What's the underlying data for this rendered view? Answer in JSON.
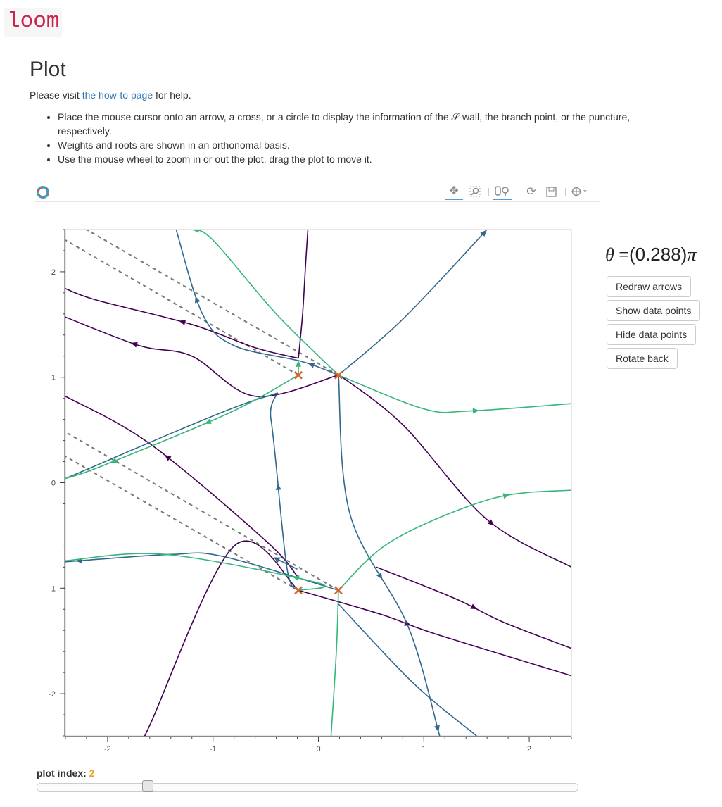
{
  "brand": "loom",
  "title": "Plot",
  "help": {
    "prefix": "Please visit ",
    "link": "the how-to page",
    "suffix": " for help."
  },
  "tips": [
    "Place the mouse cursor onto an arrow, a cross, or a circle to display the information of the 𝒮-wall, the branch point, or the puncture, respectively.",
    "Weights and roots are shown in an orthonomal basis.",
    "Use the mouse wheel to zoom in or out the plot, drag the plot to move it."
  ],
  "toolbar": {
    "icons": [
      "pan-icon",
      "box-zoom-icon",
      "wheel-zoom-icon",
      "reset-icon",
      "save-icon",
      "hover-icon"
    ],
    "active": [
      "pan-icon",
      "wheel-zoom-icon"
    ]
  },
  "theta": {
    "symbol": "θ",
    "eq": " =",
    "value": "(0.288)",
    "pi": "π"
  },
  "buttons": {
    "redraw": "Redraw arrows",
    "show": "Show data points",
    "hide": "Hide data points",
    "rotate": "Rotate back"
  },
  "slider": {
    "label": "plot index: ",
    "value": "2",
    "min": 0,
    "max": 10,
    "current": 2
  },
  "colors": {
    "purple": "#440154",
    "blue": "#31688e",
    "green": "#35b779",
    "cross": "#d6662e",
    "dashed": "#777777",
    "accent": "#f0a020"
  },
  "chart_data": {
    "type": "line",
    "title": "",
    "xlim": [
      -2.4,
      2.4
    ],
    "ylim": [
      -2.4,
      2.4
    ],
    "xticks": [
      -2,
      -1,
      0,
      1,
      2
    ],
    "yticks": [
      -2,
      -1,
      0,
      1,
      2
    ],
    "xtick_labels": [
      "-2",
      "-1",
      "0",
      "1",
      "2"
    ],
    "ytick_labels": [
      "-2",
      "-1",
      "0",
      "1",
      "2"
    ],
    "grid": false,
    "branch_points": [
      {
        "x": -0.19,
        "y": 1.02
      },
      {
        "x": 0.19,
        "y": 1.02
      },
      {
        "x": -0.19,
        "y": -1.02
      },
      {
        "x": 0.19,
        "y": -1.02
      }
    ],
    "cuts": [
      {
        "points": [
          [
            -0.19,
            1.02
          ],
          [
            -2.4,
            2.3
          ]
        ]
      },
      {
        "points": [
          [
            0.19,
            1.02
          ],
          [
            -2.2,
            2.4
          ]
        ]
      },
      {
        "points": [
          [
            -0.19,
            -1.02
          ],
          [
            -2.4,
            0.25
          ]
        ]
      },
      {
        "points": [
          [
            0.19,
            -1.02
          ],
          [
            -2.4,
            0.48
          ]
        ]
      }
    ],
    "walls": [
      {
        "color": "purple",
        "points": [
          [
            -0.19,
            1.18
          ],
          [
            -0.6,
            1.28
          ],
          [
            -1.2,
            1.5
          ],
          [
            -2.1,
            1.73
          ],
          [
            -2.4,
            1.84
          ]
        ],
        "arrows": [
          0.5
        ]
      },
      {
        "color": "purple",
        "points": [
          [
            -0.19,
            1.18
          ],
          [
            -0.15,
            1.6
          ],
          [
            -0.12,
            2.1
          ],
          [
            -0.1,
            2.4
          ]
        ]
      },
      {
        "color": "purple",
        "points": [
          [
            0.19,
            1.02
          ],
          [
            -0.6,
            0.82
          ],
          [
            -1.2,
            1.2
          ],
          [
            -1.7,
            1.3
          ],
          [
            -2.4,
            1.57
          ]
        ],
        "arrows": [
          0.75
        ]
      },
      {
        "color": "purple",
        "points": [
          [
            0.2,
            1.02
          ],
          [
            0.8,
            0.55
          ],
          [
            1.6,
            -0.35
          ],
          [
            2.4,
            -0.8
          ]
        ],
        "arrows": [
          0.7
        ]
      },
      {
        "color": "purple",
        "points": [
          [
            -0.19,
            -0.9
          ],
          [
            -0.5,
            -0.55
          ],
          [
            -1.6,
            0.37
          ],
          [
            -2.4,
            0.82
          ]
        ],
        "arrows": [
          0.6
        ]
      },
      {
        "color": "purple",
        "points": [
          [
            -0.19,
            -1.02
          ],
          [
            -0.8,
            -0.6
          ],
          [
            -1.6,
            -2.3
          ],
          [
            -1.65,
            -2.4
          ]
        ],
        "arrows": [
          0.98
        ]
      },
      {
        "color": "purple",
        "points": [
          [
            -0.19,
            -1.02
          ],
          [
            0.6,
            -1.25
          ],
          [
            1.1,
            -1.43
          ],
          [
            2.4,
            -1.83
          ]
        ],
        "arrows": [
          0.4
        ]
      },
      {
        "color": "purple",
        "points": [
          [
            0.55,
            -0.8
          ],
          [
            1.3,
            -1.1
          ],
          [
            1.75,
            -1.32
          ],
          [
            2.4,
            -1.57
          ]
        ],
        "arrows": [
          0.5
        ]
      },
      {
        "color": "blue",
        "points": [
          [
            0.19,
            1.02
          ],
          [
            -0.16,
            1.15
          ],
          [
            -0.8,
            1.3
          ],
          [
            -1.1,
            1.6
          ],
          [
            -1.35,
            2.4
          ]
        ],
        "arrows": [
          0.12,
          0.7
        ]
      },
      {
        "color": "blue",
        "points": [
          [
            0.19,
            1.02
          ],
          [
            0.8,
            1.55
          ],
          [
            1.6,
            2.4
          ]
        ],
        "arrows": [
          0.98
        ]
      },
      {
        "color": "blue",
        "points": [
          [
            0.19,
            1.02
          ],
          [
            0.3,
            -0.3
          ],
          [
            0.85,
            -1.36
          ],
          [
            1.15,
            -2.4
          ]
        ],
        "arrows": [
          0.55,
          0.98
        ]
      },
      {
        "color": "blue",
        "points": [
          [
            -0.19,
            -1.02
          ],
          [
            -0.3,
            -0.8
          ],
          [
            -0.45,
            0.6
          ],
          [
            -0.55,
            0.8
          ],
          [
            -2.4,
            0.04
          ]
        ],
        "arrows": [
          0.25
        ]
      },
      {
        "color": "blue",
        "points": [
          [
            0.19,
            -1.02
          ],
          [
            -0.9,
            -0.7
          ],
          [
            -1.4,
            -0.68
          ],
          [
            -2.4,
            -0.75
          ]
        ],
        "arrows": [
          0.95
        ]
      },
      {
        "color": "blue",
        "points": [
          [
            0.19,
            -1.15
          ],
          [
            0.9,
            -1.9
          ],
          [
            1.5,
            -2.4
          ]
        ]
      },
      {
        "color": "green",
        "points": [
          [
            -0.19,
            1.02
          ],
          [
            -0.85,
            0.66
          ],
          [
            -2.05,
            0.16
          ],
          [
            -2.4,
            0.04
          ]
        ],
        "arrows": [
          0.4,
          0.8
        ]
      },
      {
        "color": "green",
        "points": [
          [
            -0.19,
            1.02
          ],
          [
            -0.19,
            1.13
          ]
        ],
        "arrows": [
          1.0
        ]
      },
      {
        "color": "green",
        "points": [
          [
            0.19,
            1.02
          ],
          [
            1.0,
            0.7
          ],
          [
            1.43,
            0.68
          ],
          [
            2.4,
            0.75
          ]
        ],
        "arrows": [
          0.6
        ]
      },
      {
        "color": "green",
        "points": [
          [
            0.19,
            1.02
          ],
          [
            -0.4,
            1.6
          ],
          [
            -1.0,
            2.3
          ],
          [
            -1.2,
            2.4
          ]
        ],
        "arrows": [
          0.98
        ]
      },
      {
        "color": "green",
        "points": [
          [
            -0.19,
            -1.02
          ],
          [
            0.0,
            -0.95
          ],
          [
            -1.45,
            -0.68
          ],
          [
            -2.4,
            -0.74
          ]
        ],
        "arrows": [
          0.2
        ]
      },
      {
        "color": "green",
        "points": [
          [
            0.19,
            -1.02
          ],
          [
            0.7,
            -0.55
          ],
          [
            1.65,
            -0.15
          ],
          [
            2.4,
            -0.07
          ]
        ],
        "arrows": [
          0.75
        ]
      },
      {
        "color": "green",
        "points": [
          [
            0.19,
            -1.02
          ],
          [
            0.17,
            -1.6
          ],
          [
            0.12,
            -2.4
          ]
        ]
      },
      {
        "color": "blue",
        "points": [
          [
            -0.2,
            -0.82
          ],
          [
            -0.4,
            -0.72
          ]
        ],
        "arrows": [
          1.0
        ]
      }
    ]
  }
}
